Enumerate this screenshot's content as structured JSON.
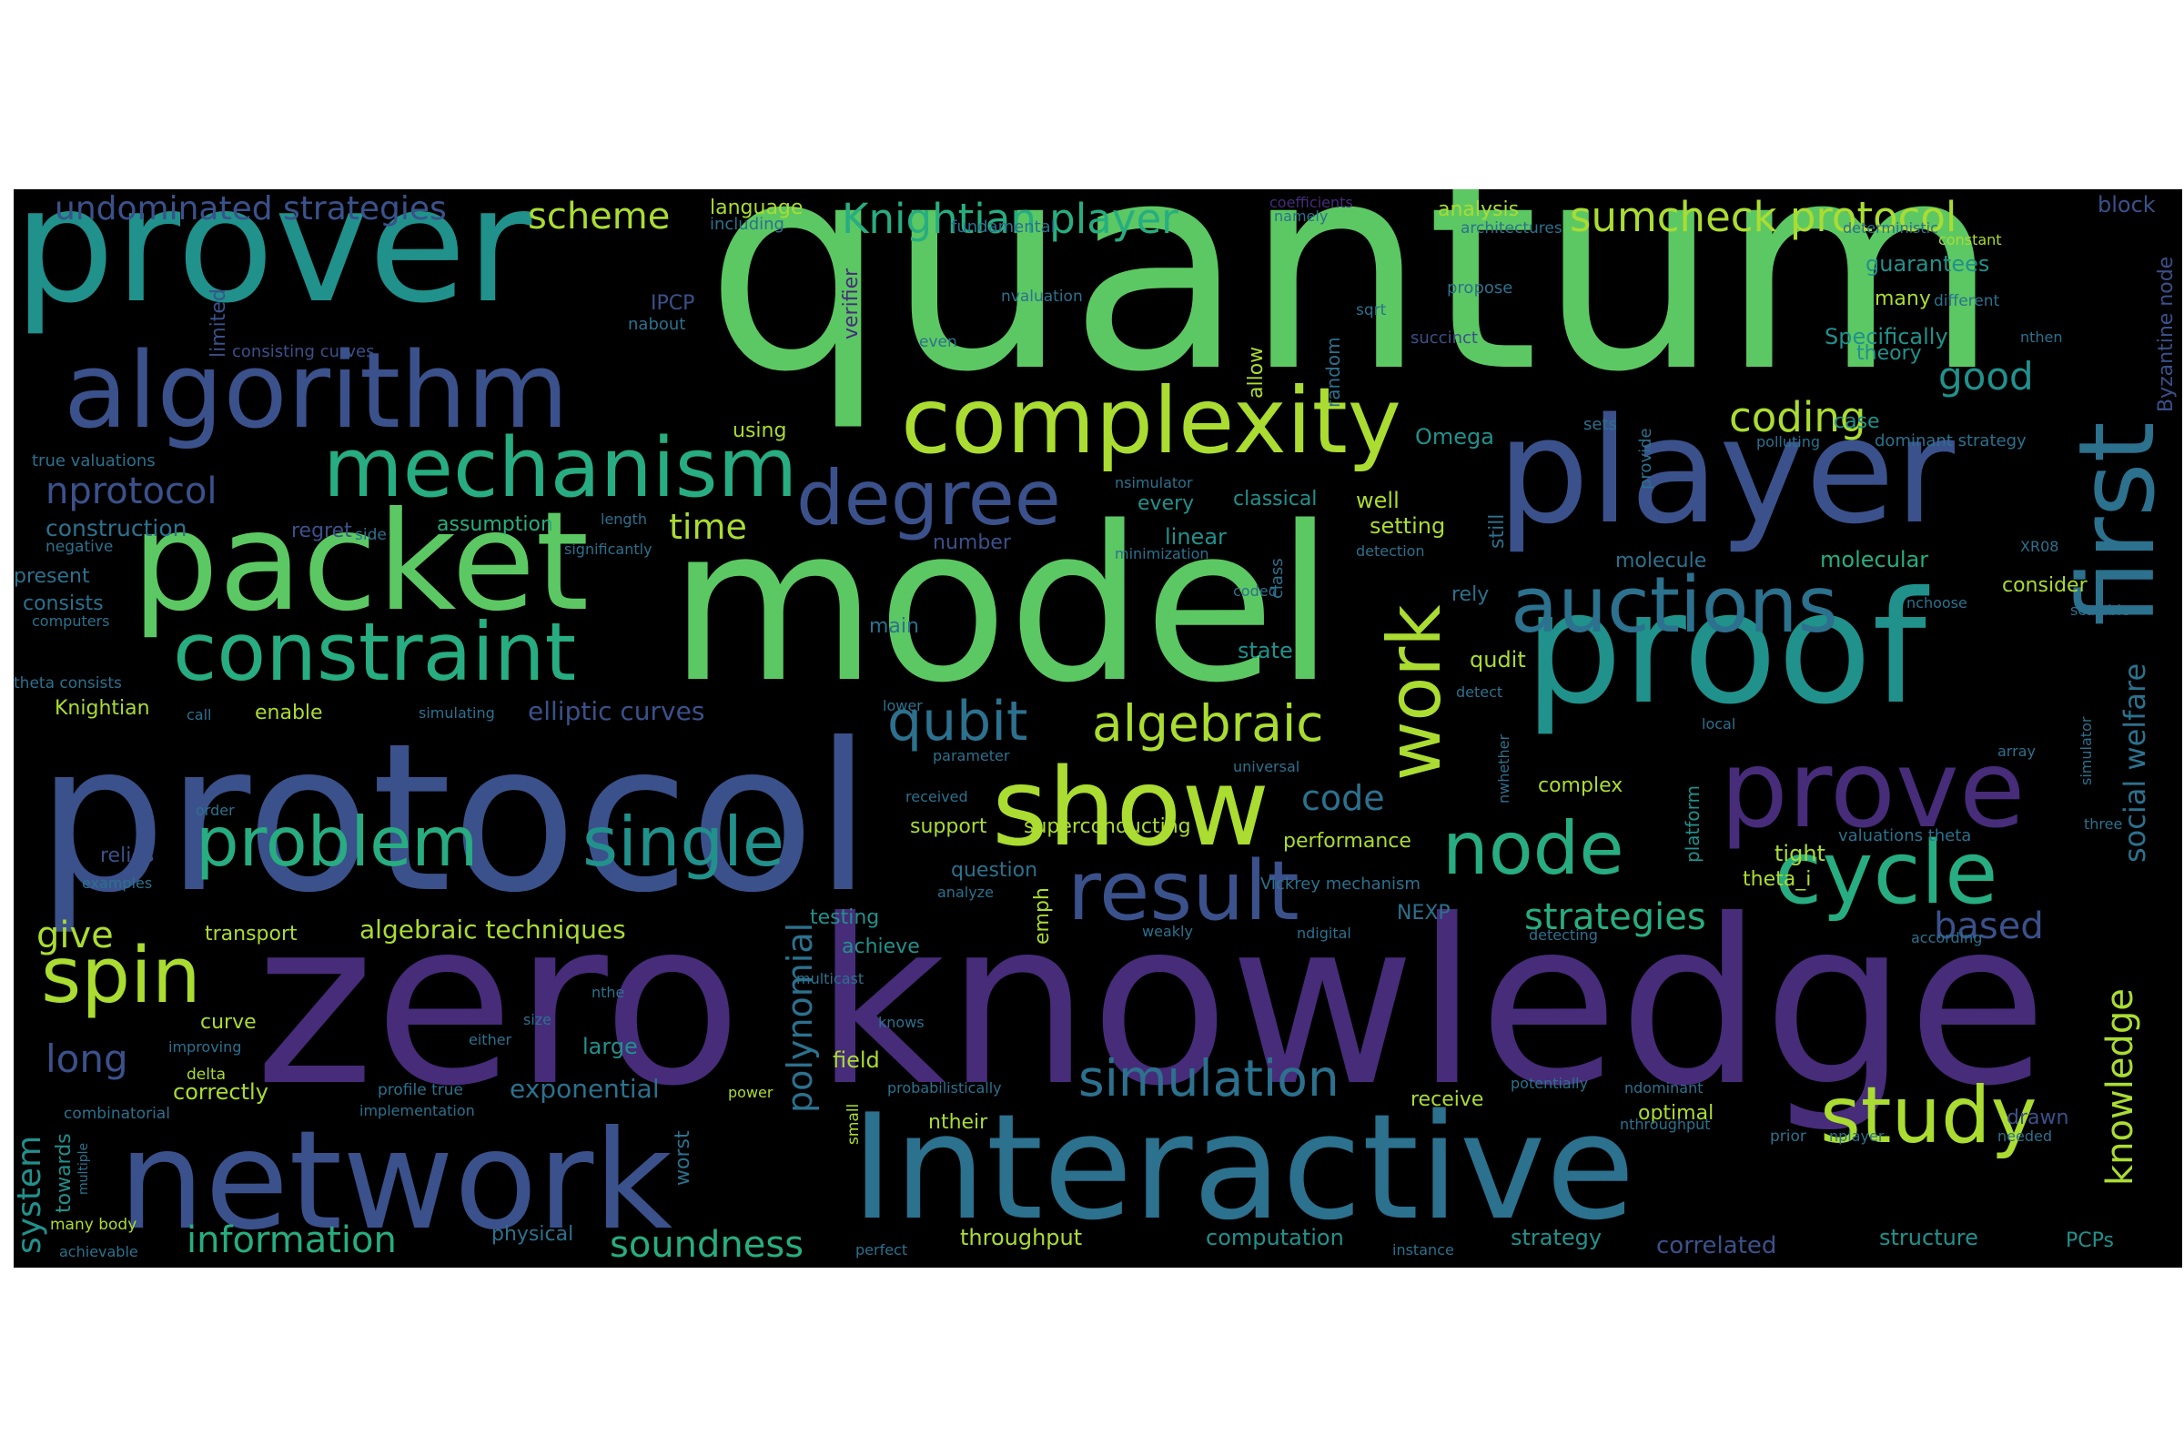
{
  "palette": [
    "#440154",
    "#472c7a",
    "#3b518b",
    "#2c718e",
    "#21918c",
    "#27ad81",
    "#5cc863",
    "#aadc32",
    "#fde725"
  ],
  "words": [
    {
      "text": "quantum",
      "color": "#5cc863"
    },
    {
      "text": "zero knowledge",
      "color": "#472c7a"
    },
    {
      "text": "model",
      "color": "#5cc863"
    },
    {
      "text": "protocol",
      "color": "#3b518b"
    },
    {
      "text": "prover",
      "color": "#21918c"
    },
    {
      "text": "Interactive",
      "color": "#2c718e"
    },
    {
      "text": "network",
      "color": "#3b518b"
    },
    {
      "text": "proof",
      "color": "#21918c"
    },
    {
      "text": "player",
      "color": "#3b518b"
    },
    {
      "text": "packet",
      "color": "#5cc863"
    },
    {
      "text": "algorithm",
      "color": "#3b518b"
    },
    {
      "text": "first",
      "color": "#2c718e"
    },
    {
      "text": "complexity",
      "color": "#aadc32"
    },
    {
      "text": "prove",
      "color": "#472c7a"
    },
    {
      "text": "show",
      "color": "#aadc32"
    },
    {
      "text": "mechanism",
      "color": "#27ad81"
    },
    {
      "text": "constraint",
      "color": "#27ad81"
    },
    {
      "text": "cycle",
      "color": "#27ad81"
    },
    {
      "text": "auctions",
      "color": "#2c718e"
    },
    {
      "text": "degree",
      "color": "#3b518b"
    },
    {
      "text": "result",
      "color": "#3b518b"
    },
    {
      "text": "study",
      "color": "#aadc32"
    },
    {
      "text": "problem",
      "color": "#27ad81"
    },
    {
      "text": "single",
      "color": "#21918c"
    },
    {
      "text": "node",
      "color": "#27ad81"
    },
    {
      "text": "work",
      "color": "#aadc32"
    },
    {
      "text": "spin",
      "color": "#aadc32"
    },
    {
      "text": "qubit",
      "color": "#2c718e"
    },
    {
      "text": "algebraic",
      "color": "#aadc32"
    },
    {
      "text": "simulation",
      "color": "#2c718e"
    },
    {
      "text": "knowledge",
      "color": "#aadc32"
    },
    {
      "text": "social welfare",
      "color": "#2c718e"
    },
    {
      "text": "Knightian player",
      "color": "#27ad81"
    },
    {
      "text": "sumcheck protocol",
      "color": "#aadc32"
    },
    {
      "text": "undominated strategies",
      "color": "#3b518b"
    },
    {
      "text": "scheme",
      "color": "#aadc32"
    },
    {
      "text": "nprotocol",
      "color": "#3b518b"
    },
    {
      "text": "polynomial",
      "color": "#2c718e"
    },
    {
      "text": "information",
      "color": "#27ad81"
    },
    {
      "text": "soundness",
      "color": "#27ad81"
    },
    {
      "text": "strategies",
      "color": "#27ad81"
    },
    {
      "text": "coding",
      "color": "#aadc32"
    },
    {
      "text": "good",
      "color": "#21918c"
    },
    {
      "text": "based",
      "color": "#3b518b"
    },
    {
      "text": "time",
      "color": "#aadc32"
    },
    {
      "text": "code",
      "color": "#2c718e"
    },
    {
      "text": "long",
      "color": "#3b518b"
    },
    {
      "text": "give",
      "color": "#aadc32"
    },
    {
      "text": "system",
      "color": "#21918c"
    },
    {
      "text": "exponential",
      "color": "#2c718e"
    },
    {
      "text": "algebraic techniques",
      "color": "#aadc32"
    },
    {
      "text": "elliptic curves",
      "color": "#3b518b"
    },
    {
      "text": "construction",
      "color": "#2c718e"
    },
    {
      "text": "language",
      "color": "#aadc32"
    },
    {
      "text": "including",
      "color": "#2c718e"
    },
    {
      "text": "verifier",
      "color": "#472c7a"
    },
    {
      "text": "fundamental",
      "color": "#2c718e"
    },
    {
      "text": "coefficients",
      "color": "#472c7a"
    },
    {
      "text": "namely",
      "color": "#2c718e"
    },
    {
      "text": "analysis",
      "color": "#aadc32"
    },
    {
      "text": "architectures",
      "color": "#2c718e"
    },
    {
      "text": "deterministic",
      "color": "#2c718e"
    },
    {
      "text": "constant",
      "color": "#aadc32"
    },
    {
      "text": "block",
      "color": "#3b518b"
    },
    {
      "text": "Byzantine node",
      "color": "#3b518b"
    },
    {
      "text": "guarantees",
      "color": "#21918c"
    },
    {
      "text": "many",
      "color": "#aadc32"
    },
    {
      "text": "different",
      "color": "#2c718e"
    },
    {
      "text": "Specifically",
      "color": "#21918c"
    },
    {
      "text": "theory",
      "color": "#21918c"
    },
    {
      "text": "nthen",
      "color": "#2c718e"
    },
    {
      "text": "limited",
      "color": "#3b518b"
    },
    {
      "text": "consisting curves",
      "color": "#3b518b"
    },
    {
      "text": "IPCP",
      "color": "#3b518b"
    },
    {
      "text": "nabout",
      "color": "#2c718e"
    },
    {
      "text": "nvaluation",
      "color": "#2c718e"
    },
    {
      "text": "even",
      "color": "#2c718e"
    },
    {
      "text": "allow",
      "color": "#aadc32"
    },
    {
      "text": "random",
      "color": "#2c718e"
    },
    {
      "text": "sqrt",
      "color": "#2c718e"
    },
    {
      "text": "succinct",
      "color": "#3b518b"
    },
    {
      "text": "propose",
      "color": "#2c718e"
    },
    {
      "text": "using",
      "color": "#aadc32"
    },
    {
      "text": "Omega",
      "color": "#21918c"
    },
    {
      "text": "sets",
      "color": "#2c718e"
    },
    {
      "text": "provide",
      "color": "#2c718e"
    },
    {
      "text": "polluting",
      "color": "#2c718e"
    },
    {
      "text": "case",
      "color": "#21918c"
    },
    {
      "text": "dominant strategy",
      "color": "#2c718e"
    },
    {
      "text": "true valuations",
      "color": "#2c718e"
    },
    {
      "text": "nsimulator",
      "color": "#2c718e"
    },
    {
      "text": "every",
      "color": "#21918c"
    },
    {
      "text": "classical",
      "color": "#21918c"
    },
    {
      "text": "well",
      "color": "#aadc32"
    },
    {
      "text": "setting",
      "color": "#aadc32"
    },
    {
      "text": "still",
      "color": "#2c718e"
    },
    {
      "text": "regret",
      "color": "#3b518b"
    },
    {
      "text": "side",
      "color": "#2c718e"
    },
    {
      "text": "assumption",
      "color": "#27ad81"
    },
    {
      "text": "length",
      "color": "#2c718e"
    },
    {
      "text": "linear",
      "color": "#21918c"
    },
    {
      "text": "number",
      "color": "#3b518b"
    },
    {
      "text": "minimization",
      "color": "#2c718e"
    },
    {
      "text": "detection",
      "color": "#2c718e"
    },
    {
      "text": "molecule",
      "color": "#2c718e"
    },
    {
      "text": "molecular",
      "color": "#27ad81"
    },
    {
      "text": "XR08",
      "color": "#2c718e"
    },
    {
      "text": "negative",
      "color": "#2c718e"
    },
    {
      "text": "significantly",
      "color": "#2c718e"
    },
    {
      "text": "present",
      "color": "#2c718e"
    },
    {
      "text": "class",
      "color": "#2c718e"
    },
    {
      "text": "coded",
      "color": "#2c718e"
    },
    {
      "text": "rely",
      "color": "#2c718e"
    },
    {
      "text": "consider",
      "color": "#aadc32"
    },
    {
      "text": "nchoose",
      "color": "#2c718e"
    },
    {
      "text": "scalable",
      "color": "#2c718e"
    },
    {
      "text": "consists",
      "color": "#2c718e"
    },
    {
      "text": "computers",
      "color": "#2c718e"
    },
    {
      "text": "main",
      "color": "#2c718e"
    },
    {
      "text": "state",
      "color": "#21918c"
    },
    {
      "text": "qudit",
      "color": "#aadc32"
    },
    {
      "text": "detect",
      "color": "#2c718e"
    },
    {
      "text": "theta consists",
      "color": "#2c718e"
    },
    {
      "text": "Knightian",
      "color": "#aadc32"
    },
    {
      "text": "call",
      "color": "#2c718e"
    },
    {
      "text": "enable",
      "color": "#aadc32"
    },
    {
      "text": "simulating",
      "color": "#2c718e"
    },
    {
      "text": "lower",
      "color": "#2c718e"
    },
    {
      "text": "local",
      "color": "#2c718e"
    },
    {
      "text": "array",
      "color": "#2c718e"
    },
    {
      "text": "simulator",
      "color": "#2c718e"
    },
    {
      "text": "parameter",
      "color": "#2c718e"
    },
    {
      "text": "universal",
      "color": "#2c718e"
    },
    {
      "text": "nwhether",
      "color": "#2c718e"
    },
    {
      "text": "complex",
      "color": "#aadc32"
    },
    {
      "text": "platform",
      "color": "#21918c"
    },
    {
      "text": "order",
      "color": "#2c718e"
    },
    {
      "text": "received",
      "color": "#2c718e"
    },
    {
      "text": "support",
      "color": "#aadc32"
    },
    {
      "text": "superconducting",
      "color": "#aadc32"
    },
    {
      "text": "performance",
      "color": "#aadc32"
    },
    {
      "text": "valuations theta",
      "color": "#2c718e"
    },
    {
      "text": "three",
      "color": "#2c718e"
    },
    {
      "text": "tight",
      "color": "#aadc32"
    },
    {
      "text": "relies",
      "color": "#3b518b"
    },
    {
      "text": "question",
      "color": "#2c718e"
    },
    {
      "text": "theta_i",
      "color": "#aadc32"
    },
    {
      "text": "examples",
      "color": "#2c718e"
    },
    {
      "text": "analyze",
      "color": "#2c718e"
    },
    {
      "text": "Vickrey mechanism",
      "color": "#2c718e"
    },
    {
      "text": "testing",
      "color": "#21918c"
    },
    {
      "text": "emph",
      "color": "#aadc32"
    },
    {
      "text": "NEXP",
      "color": "#2c718e"
    },
    {
      "text": "transport",
      "color": "#aadc32"
    },
    {
      "text": "achieve",
      "color": "#21918c"
    },
    {
      "text": "weakly",
      "color": "#2c718e"
    },
    {
      "text": "ndigital",
      "color": "#2c718e"
    },
    {
      "text": "detecting",
      "color": "#2c718e"
    },
    {
      "text": "according",
      "color": "#2c718e"
    },
    {
      "text": "nthe",
      "color": "#2c718e"
    },
    {
      "text": "multicast",
      "color": "#2c718e"
    },
    {
      "text": "curve",
      "color": "#aadc32"
    },
    {
      "text": "knows",
      "color": "#2c718e"
    },
    {
      "text": "improving",
      "color": "#2c718e"
    },
    {
      "text": "either",
      "color": "#2c718e"
    },
    {
      "text": "large",
      "color": "#21918c"
    },
    {
      "text": "delta",
      "color": "#aadc32"
    },
    {
      "text": "field",
      "color": "#aadc32"
    },
    {
      "text": "probabilistically",
      "color": "#2c718e"
    },
    {
      "text": "potentially",
      "color": "#2c718e"
    },
    {
      "text": "ndominant",
      "color": "#2c718e"
    },
    {
      "text": "correctly",
      "color": "#aadc32"
    },
    {
      "text": "profile true",
      "color": "#2c718e"
    },
    {
      "text": "power",
      "color": "#aadc32"
    },
    {
      "text": "receive",
      "color": "#aadc32"
    },
    {
      "text": "optimal",
      "color": "#aadc32"
    },
    {
      "text": "small",
      "color": "#aadc32"
    },
    {
      "text": "drawn",
      "color": "#3b518b"
    },
    {
      "text": "combinatorial",
      "color": "#2c718e"
    },
    {
      "text": "implementation",
      "color": "#2c718e"
    },
    {
      "text": "ntheir",
      "color": "#aadc32"
    },
    {
      "text": "nthroughput",
      "color": "#2c718e"
    },
    {
      "text": "prior",
      "color": "#2c718e"
    },
    {
      "text": "nplayer",
      "color": "#2c718e"
    },
    {
      "text": "needed",
      "color": "#2c718e"
    },
    {
      "text": "towards",
      "color": "#21918c"
    },
    {
      "text": "multiple",
      "color": "#2c718e"
    },
    {
      "text": "worst",
      "color": "#2c718e"
    },
    {
      "text": "many body",
      "color": "#aadc32"
    },
    {
      "text": "physical",
      "color": "#2c718e"
    },
    {
      "text": "throughput",
      "color": "#aadc32"
    },
    {
      "text": "computation",
      "color": "#21918c"
    },
    {
      "text": "strategy",
      "color": "#21918c"
    },
    {
      "text": "correlated",
      "color": "#3b518b"
    },
    {
      "text": "structure",
      "color": "#21918c"
    },
    {
      "text": "PCPs",
      "color": "#21918c"
    },
    {
      "text": "achievable",
      "color": "#2c718e"
    },
    {
      "text": "perfect",
      "color": "#2c718e"
    },
    {
      "text": "instance",
      "color": "#2c718e"
    },
    {
      "text": "size",
      "color": "#2c718e"
    }
  ]
}
